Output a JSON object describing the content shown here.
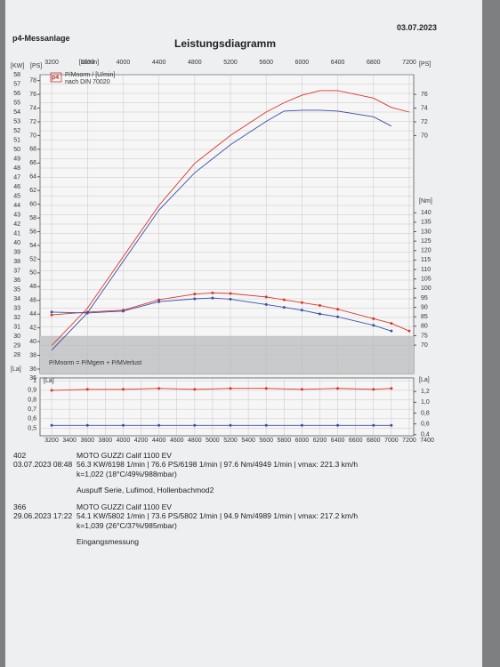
{
  "header": {
    "left": "p4-Messanlage",
    "title": "Leistungsdiagramm",
    "date": "03.07.2023"
  },
  "chart_data": [
    {
      "type": "line",
      "logo": "p4",
      "legend_title": "P/Mnorm / [U/min]",
      "subtitle": "nach DIN 70020",
      "x_unit": "[U/min]",
      "y_unit": "[KW]",
      "ps_unit": "[PS]",
      "y2_unit": "[Nm]",
      "right_ps_unit": "[PS]",
      "loss_label": "P/Mnorm = P/Mgem + P/MVerlust",
      "x": [
        3200,
        3600,
        4000,
        4400,
        4800,
        5000,
        5200,
        5600,
        5800,
        6000,
        6200,
        6400,
        6800,
        7000,
        7200
      ],
      "xlim": [
        3070,
        7250
      ],
      "top_xticks": [
        3200,
        3600,
        4000,
        4400,
        4800,
        5200,
        5600,
        6000,
        6400,
        6800,
        7200
      ],
      "ylim": [
        26,
        58
      ],
      "yticks": [
        28,
        29,
        30,
        31,
        32,
        33,
        34,
        35,
        36,
        37,
        38,
        39,
        40,
        41,
        42,
        43,
        44,
        45,
        46,
        47,
        48,
        49,
        50,
        51,
        52,
        53,
        54,
        55,
        56,
        57,
        58
      ],
      "ps_lim": [
        35.35,
        78.86
      ],
      "ps_ticks": [
        36,
        38,
        40,
        42,
        44,
        46,
        48,
        50,
        52,
        54,
        56,
        58,
        60,
        62,
        64,
        66,
        68,
        70,
        72,
        74,
        76,
        78
      ],
      "right_ps_ticks": [
        70,
        72,
        74,
        76
      ],
      "y2lim": [
        55,
        213
      ],
      "y2ticks": [
        70,
        75,
        80,
        85,
        90,
        95,
        100,
        105,
        110,
        115,
        120,
        125,
        130,
        135,
        140
      ],
      "grid": true,
      "series": [
        {
          "color": "#d9362b",
          "values": [
            29,
            33,
            38.5,
            44,
            48.5,
            50,
            51.5,
            54,
            55,
            55.8,
            56.3,
            56.3,
            55.5,
            54.5,
            54
          ]
        },
        {
          "color": "#3a4fa8",
          "values": [
            28.5,
            32.5,
            38,
            43.5,
            47.5,
            49,
            50.5,
            53,
            54.1,
            54.2,
            54.2,
            54.1,
            53.5,
            52.5,
            null
          ]
        },
        {
          "color": "#d9362b",
          "axis": "y2",
          "markers": true,
          "values": [
            86,
            87.5,
            88.5,
            94,
            97,
            97.6,
            97.3,
            95.5,
            94,
            92.5,
            91,
            89,
            84,
            81.5,
            77.5
          ]
        },
        {
          "color": "#3a4fa8",
          "axis": "y2",
          "markers": true,
          "values": [
            87.5,
            87,
            88,
            93,
            94.5,
            94.9,
            94.3,
            91.5,
            90,
            88.5,
            86.5,
            85,
            80.5,
            77.5,
            null
          ]
        }
      ]
    },
    {
      "type": "line",
      "y_unit": "[La]",
      "y2_unit": "[La]",
      "corner_label": "36",
      "x": [
        3200,
        3600,
        4000,
        4400,
        4800,
        5200,
        5600,
        6000,
        6400,
        6800,
        7000
      ],
      "xlim": [
        3070,
        7250
      ],
      "xticks": [
        3200,
        3400,
        3600,
        3800,
        4000,
        4200,
        4400,
        4600,
        4800,
        5000,
        5200,
        5400,
        5600,
        5800,
        6000,
        6200,
        6400,
        6600,
        6800,
        7000,
        7200,
        7400
      ],
      "ylim": [
        0.42,
        1.03
      ],
      "yticks": [
        {
          "value": 0.5,
          "label": "0,5"
        },
        {
          "value": 0.6,
          "label": "0,6"
        },
        {
          "value": 0.7,
          "label": "0,7"
        },
        {
          "value": 0.8,
          "label": "0,8"
        },
        {
          "value": 0.9,
          "label": "0,9"
        },
        1
      ],
      "y2lim": [
        0.38,
        1.45
      ],
      "y2ticks": [
        {
          "value": 0.4,
          "label": "0,4"
        },
        {
          "value": 0.6,
          "label": "0,6"
        },
        {
          "value": 0.8,
          "label": "0,8"
        },
        {
          "value": 1.0,
          "label": "1,0"
        },
        {
          "value": 1.2,
          "label": "1,2"
        }
      ],
      "grid": true,
      "series": [
        {
          "color": "#d9362b",
          "markers": true,
          "values": [
            0.9,
            0.91,
            0.91,
            0.92,
            0.91,
            0.92,
            0.92,
            0.91,
            0.92,
            0.91,
            0.92
          ]
        },
        {
          "color": "#3a4fa8",
          "markers": true,
          "values": [
            0.53,
            0.53,
            0.53,
            0.53,
            0.53,
            0.53,
            0.53,
            0.53,
            0.53,
            0.53,
            0.53
          ]
        }
      ]
    }
  ],
  "runs": [
    {
      "id": "402",
      "vehicle": "MOTO GUZZI Calif 1100 EV",
      "datetime": "03.07.2023  08:48",
      "result": "56.3 KW/6198 1/min  |  76.6 PS/6198 1/min  |  97.6 Nm/4949 1/min  |  vmax: 221.3 km/h",
      "conditions": "k=1,022 (18°C/49%/988mbar)",
      "note": "Auspuff Serie, Lufimod, Hollenbachmod2"
    },
    {
      "id": "366",
      "vehicle": "MOTO GUZZI Calif 1100 EV",
      "datetime": "29.06.2023  17:22",
      "result": "54.1 KW/5802 1/min  |  73.6 PS/5802 1/min  |  94.9 Nm/4989 1/min  |  vmax: 217.2 km/h",
      "conditions": "k=1,039 (26°C/37%/985mbar)",
      "note": "Eingangsmessung"
    }
  ]
}
